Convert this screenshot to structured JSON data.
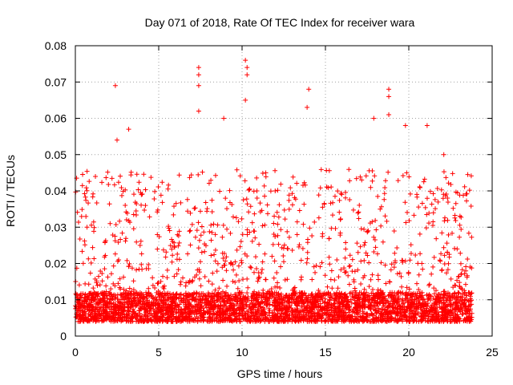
{
  "chart_data": {
    "type": "scatter",
    "title": "Day 071 of 2018, Rate Of TEC Index for receiver wara",
    "xlabel": "GPS time / hours",
    "ylabel": "ROTI / TECUs",
    "xlim": [
      0,
      25
    ],
    "ylim": [
      0,
      0.08
    ],
    "x_ticks": [
      0,
      5,
      10,
      15,
      20,
      25
    ],
    "x_tick_labels": [
      "0",
      "5",
      "10",
      "15",
      "20",
      "25"
    ],
    "y_ticks": [
      0,
      0.01,
      0.02,
      0.03,
      0.04,
      0.05,
      0.06,
      0.07,
      0.08
    ],
    "y_tick_labels": [
      "0",
      "0.01",
      "0.02",
      "0.03",
      "0.04",
      "0.05",
      "0.06",
      "0.07",
      "0.08"
    ],
    "grid": true,
    "marker": "+",
    "color": "#ff0000",
    "series": [
      {
        "name": "ROTI",
        "x_range": [
          0,
          23.8
        ],
        "baseline_range": [
          0.004,
          0.012
        ],
        "notable_points": [
          {
            "x": 2.4,
            "y": 0.069
          },
          {
            "x": 2.5,
            "y": 0.054
          },
          {
            "x": 3.2,
            "y": 0.057
          },
          {
            "x": 7.4,
            "y": 0.074
          },
          {
            "x": 7.4,
            "y": 0.072
          },
          {
            "x": 7.4,
            "y": 0.069
          },
          {
            "x": 7.4,
            "y": 0.062
          },
          {
            "x": 8.9,
            "y": 0.06
          },
          {
            "x": 10.2,
            "y": 0.076
          },
          {
            "x": 10.3,
            "y": 0.074
          },
          {
            "x": 10.3,
            "y": 0.072
          },
          {
            "x": 10.2,
            "y": 0.065
          },
          {
            "x": 14.0,
            "y": 0.068
          },
          {
            "x": 13.9,
            "y": 0.063
          },
          {
            "x": 17.9,
            "y": 0.06
          },
          {
            "x": 18.8,
            "y": 0.068
          },
          {
            "x": 18.8,
            "y": 0.066
          },
          {
            "x": 18.8,
            "y": 0.061
          },
          {
            "x": 19.8,
            "y": 0.058
          },
          {
            "x": 21.1,
            "y": 0.058
          },
          {
            "x": 22.1,
            "y": 0.05
          }
        ]
      }
    ]
  }
}
